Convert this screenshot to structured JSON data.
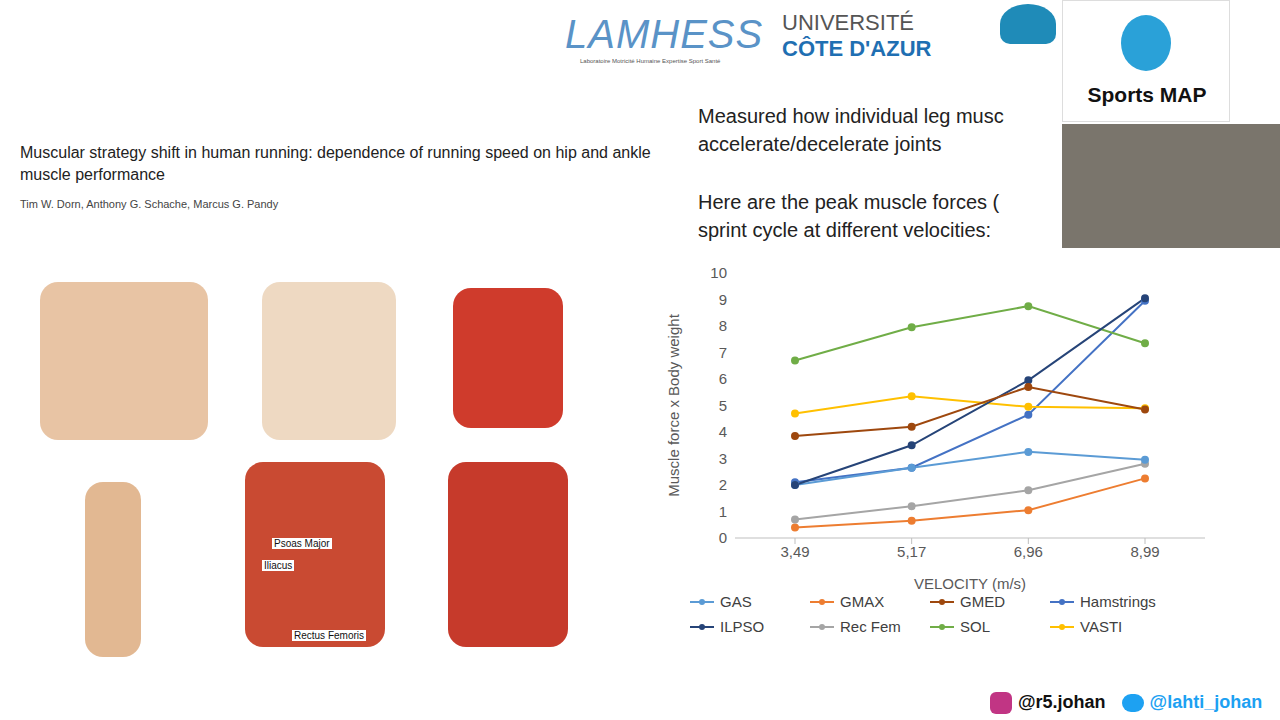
{
  "chart_data": {
    "type": "line",
    "categories": [
      "3,49",
      "5,17",
      "6,96",
      "8,99"
    ],
    "x_label": "VELOCITY (m/s)",
    "y_label": "Muscle force x Body weight",
    "ylim": [
      0,
      10
    ],
    "yticks": [
      0,
      1,
      2,
      3,
      4,
      5,
      6,
      7,
      8,
      9,
      10
    ],
    "grid": false,
    "legend": "bottom",
    "marker": "circle",
    "series": [
      {
        "name": "Hamstrings",
        "color": "#4472c4",
        "values": [
          2.1,
          2.65,
          4.65,
          8.95
        ]
      },
      {
        "name": "GMAX",
        "color": "#ed7d31",
        "values": [
          0.4,
          0.65,
          1.05,
          2.25
        ]
      },
      {
        "name": "Rec Fem",
        "color": "#a5a5a5",
        "values": [
          0.7,
          1.2,
          1.8,
          2.8
        ]
      },
      {
        "name": "VASTI",
        "color": "#ffc000",
        "values": [
          4.7,
          5.35,
          4.95,
          4.9
        ]
      },
      {
        "name": "GAS",
        "color": "#5b9bd5",
        "values": [
          2.0,
          2.65,
          3.25,
          2.95
        ]
      },
      {
        "name": "SOL",
        "color": "#70ad47",
        "values": [
          6.7,
          7.95,
          8.75,
          7.35
        ]
      },
      {
        "name": "ILPSO",
        "color": "#264478",
        "values": [
          2.0,
          3.5,
          5.95,
          9.05
        ]
      },
      {
        "name": "GMED",
        "color": "#9e480e",
        "values": [
          3.85,
          4.2,
          5.7,
          4.85
        ]
      }
    ]
  },
  "slide": {
    "title": "Muscular strategy shift in human running: dependence of running speed on hip and ankle muscle performance",
    "authors": "Tim W. Dorn, Anthony G. Schache, Marcus G. Pandy",
    "text": [
      "Measured how individual leg musc",
      "accelerate/decelerate joints",
      "Here are the peak muscle forces (",
      "sprint cycle at different velocities:"
    ],
    "logos": [
      "LAMHESS",
      "Laboratoire Motricité Humaine Expertise Sport Santé",
      "UNIVERSITÉ",
      "CÔTE D'AZUR"
    ],
    "image_labels": [
      "Psoas Major",
      "Iliacus",
      "Rectus Femoris"
    ],
    "badge": "Sports MAP",
    "handles": [
      "@r5.johan",
      "@lahti_johan"
    ]
  }
}
